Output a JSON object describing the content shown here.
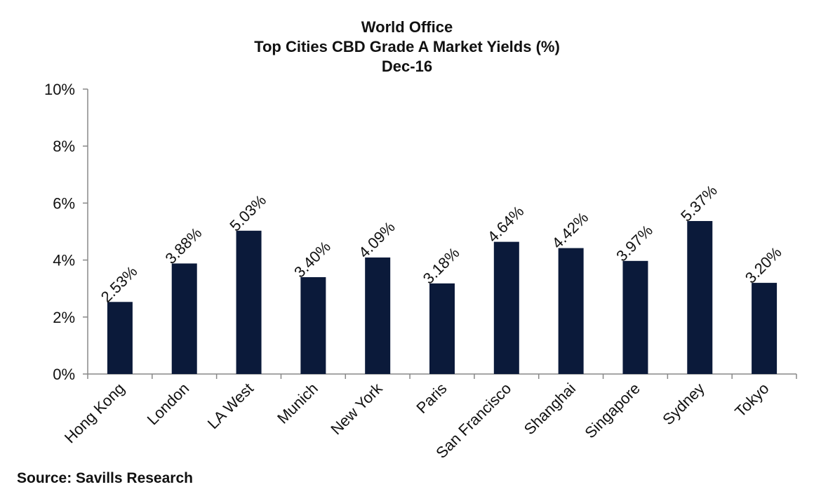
{
  "chart_data": {
    "type": "bar",
    "title": "World Office",
    "subtitle": "Top Cities CBD Grade A Market Yields (%)",
    "subtitle2": "Dec-16",
    "categories": [
      "Hong Kong",
      "London",
      "LA West",
      "Munich",
      "New York",
      "Paris",
      "San Francisco",
      "Shanghai",
      "Singapore",
      "Sydney",
      "Tokyo"
    ],
    "values": [
      2.53,
      3.88,
      5.03,
      3.4,
      4.09,
      3.18,
      4.64,
      4.42,
      3.97,
      5.37,
      3.2
    ],
    "data_labels": [
      "2.53%",
      "3.88%",
      "5.03%",
      "3.40%",
      "4.09%",
      "3.18%",
      "4.64%",
      "4.42%",
      "3.97%",
      "5.37%",
      "3.20%"
    ],
    "ylim": [
      0,
      10
    ],
    "yticks": [
      0,
      2,
      4,
      6,
      8,
      10
    ],
    "ytick_labels": [
      "0%",
      "2%",
      "4%",
      "6%",
      "8%",
      "10%"
    ],
    "xlabel": "",
    "ylabel": "",
    "grid": false,
    "bar_color": "#0b1a3a"
  },
  "source": "Source: Savills Research"
}
